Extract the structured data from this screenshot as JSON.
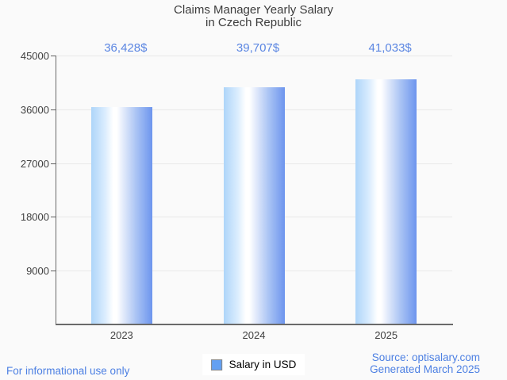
{
  "title": {
    "line1": "Claims Manager Yearly Salary",
    "line2": "in Czech Republic"
  },
  "chart_data": {
    "type": "bar",
    "title": "Claims Manager Yearly Salary in Czech Republic",
    "categories": [
      "2023",
      "2024",
      "2025"
    ],
    "series": [
      {
        "name": "Salary in USD",
        "values": [
          36428,
          39707,
          41033
        ]
      }
    ],
    "value_labels": [
      "36,428$",
      "39,707$",
      "41,033$"
    ],
    "xlabel": "",
    "ylabel": "",
    "ylim": [
      0,
      45000
    ],
    "yticks": [
      9000,
      18000,
      27000,
      36000,
      45000
    ],
    "grid": true,
    "legend_position": "bottom",
    "bar_gradient": [
      "#aed5f9",
      "#ffffff",
      "#6d95ee"
    ]
  },
  "legend": {
    "items": [
      {
        "label": "Salary in USD",
        "swatch_color": "#63a0f2"
      }
    ]
  },
  "footer": {
    "disclaimer": "For informational use only",
    "source": "Source: optisalary.com",
    "generated": "Generated March 2025"
  },
  "colors": {
    "background": "#fafafa",
    "title_text": "#3d3d3d",
    "axis_text": "#3f3f3f",
    "gridline": "#e8e8e8",
    "axis_line": "#6a6a6a",
    "value_label_text": "#5b86e2",
    "footer_text": "#4d80e3",
    "legend_swatch": "#63a0f2"
  }
}
